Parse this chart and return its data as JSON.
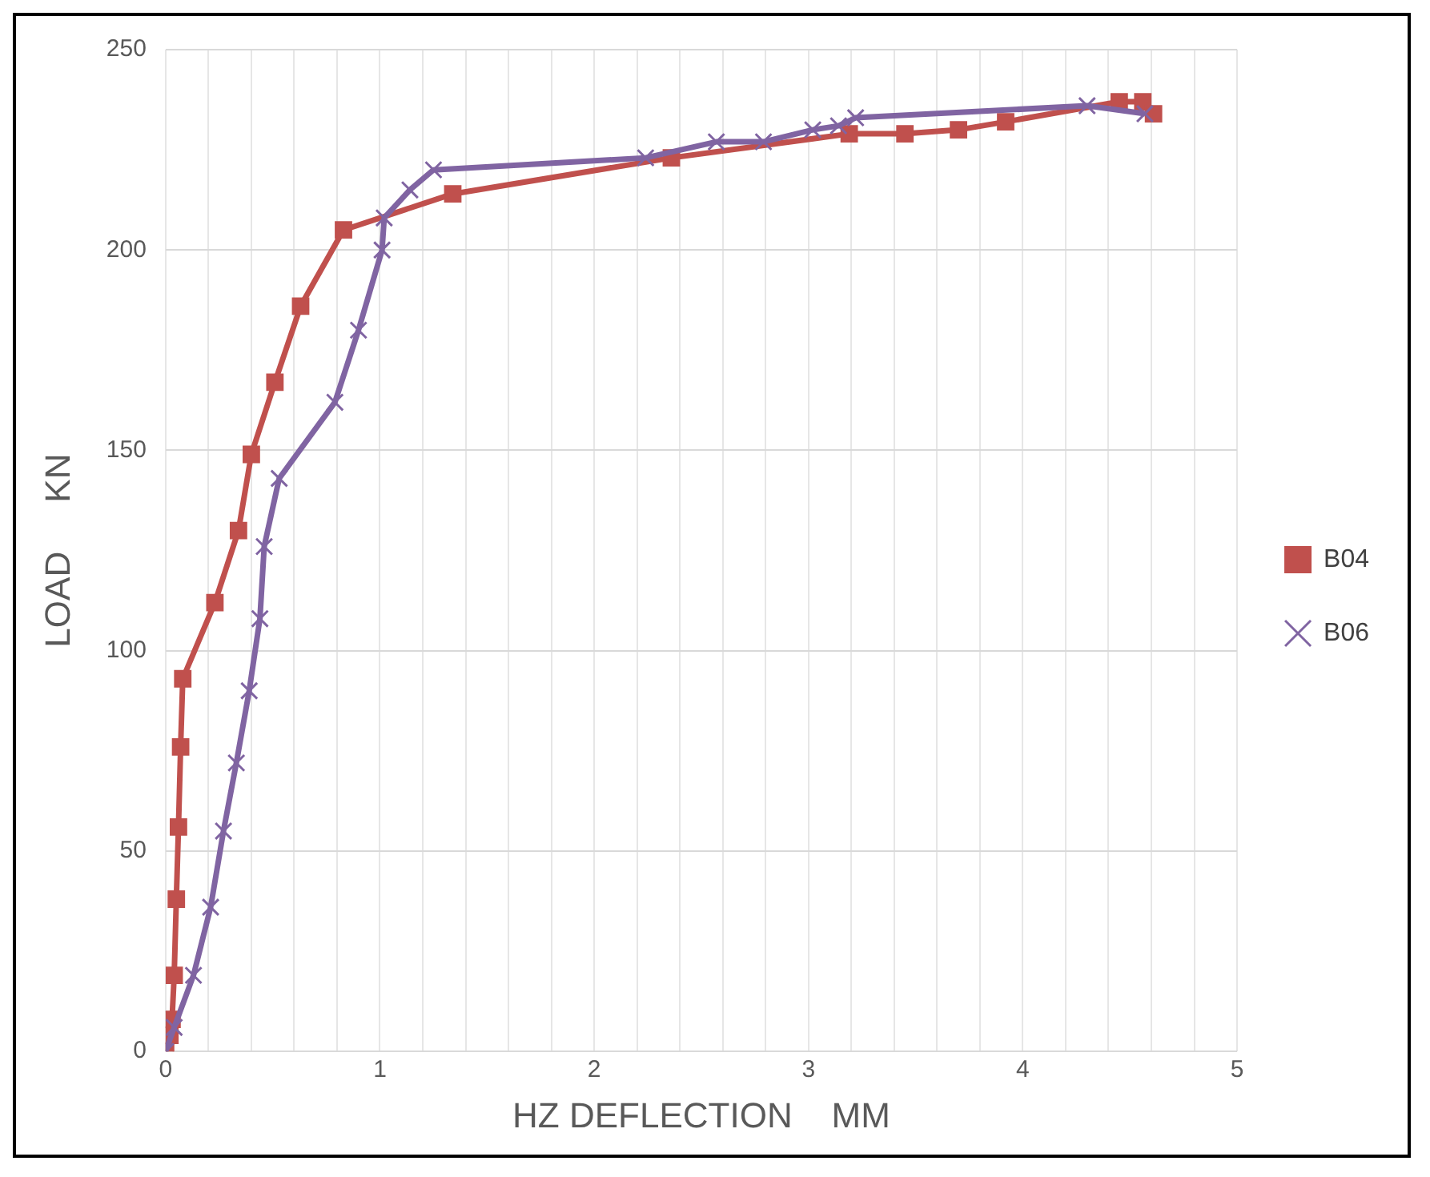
{
  "chart_data": {
    "type": "line",
    "xlabel": "HZ DEFLECTION    MM",
    "ylabel": "LOAD     KN",
    "xlim": [
      0,
      5
    ],
    "xticks": [
      0,
      {
        "value": 0.2,
        "label": null
      },
      {
        "value": 0.4,
        "label": null
      },
      {
        "value": 0.6,
        "label": null
      },
      {
        "value": 0.8,
        "label": null
      },
      1,
      {
        "value": 1.2,
        "label": null
      },
      {
        "value": 1.4,
        "label": null
      },
      {
        "value": 1.6,
        "label": null
      },
      {
        "value": 1.8,
        "label": null
      },
      2,
      {
        "value": 2.2,
        "label": null
      },
      {
        "value": 2.4,
        "label": null
      },
      {
        "value": 2.6,
        "label": null
      },
      {
        "value": 2.8,
        "label": null
      },
      3,
      {
        "value": 3.2,
        "label": null
      },
      {
        "value": 3.4,
        "label": null
      },
      {
        "value": 3.6,
        "label": null
      },
      {
        "value": 3.8,
        "label": null
      },
      4,
      {
        "value": 4.2,
        "label": null
      },
      {
        "value": 4.4,
        "label": null
      },
      {
        "value": 4.6,
        "label": null
      },
      {
        "value": 4.8,
        "label": null
      },
      5
    ],
    "ylim": [
      0,
      250
    ],
    "yticks": [
      0,
      50,
      100,
      150,
      200,
      250
    ],
    "grid": true,
    "legend": "right",
    "line_style": "solid",
    "series": [
      {
        "name": "B04",
        "color": "#c0504d",
        "marker": "square",
        "x": [
          0,
          0.02,
          0.03,
          0.04,
          0.05,
          0.06,
          0.07,
          0.08,
          0.23,
          0.34,
          0.4,
          0.51,
          0.63,
          0.83,
          1.34,
          2.36,
          3.19,
          3.45,
          3.7,
          3.92,
          4.45,
          4.56,
          4.61
        ],
        "values": [
          0,
          4,
          8,
          19,
          38,
          56,
          76,
          93,
          112,
          130,
          149,
          167,
          186,
          205,
          214,
          223,
          229,
          229,
          230,
          232,
          237,
          237,
          234
        ]
      },
      {
        "name": "B06",
        "color": "#8064a2",
        "marker": "cross",
        "x": [
          0,
          0.04,
          0.13,
          0.21,
          0.27,
          0.33,
          0.39,
          0.44,
          0.46,
          0.53,
          0.79,
          0.9,
          1.01,
          1.02,
          1.14,
          1.25,
          2.24,
          2.57,
          2.79,
          3.02,
          3.14,
          3.22,
          4.3,
          4.57
        ],
        "values": [
          0,
          6,
          19,
          36,
          55,
          72,
          90,
          108,
          126,
          143,
          162,
          180,
          200,
          208,
          215,
          220,
          223,
          227,
          227,
          230,
          231,
          233,
          236,
          234
        ]
      }
    ]
  }
}
